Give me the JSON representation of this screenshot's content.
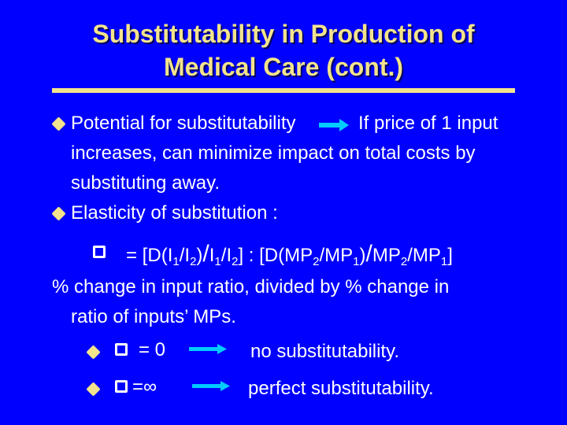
{
  "title": {
    "line1": "Substitutability in Production of",
    "line2": "Medical Care (cont.)"
  },
  "colors": {
    "background": "#0000FF",
    "title": "#F2E38C",
    "bullet": "#F2E38C",
    "text": "#FFFFFF",
    "arrow": "#00CCFF"
  },
  "bullets": [
    {
      "label": "Potential for substitutability",
      "after_arrow": "If price of  1 input",
      "line2": "increases, can minimize impact on total costs by",
      "line3": "substituting away."
    },
    {
      "label": "Elasticity of substitution :"
    }
  ],
  "formula": {
    "eq_open": " = [",
    "delta_symbol": "D",
    "paren_open": "(",
    "I": "I",
    "slash": "/",
    "sub1": "1",
    "sub2": "2",
    "close_paren": ")",
    "big_slash": "/",
    "middle": "] : [",
    "mp_open": "(MP",
    "mp_div": "/MP",
    "mp_close": ")",
    "mp2": "MP",
    "mp_div2": "/MP",
    "end": "]"
  },
  "explanation": {
    "line1": "% change in input ratio, divided by % change in",
    "line2": "ratio of inputs’ MPs."
  },
  "cases": [
    {
      "relation": "= 0",
      "result": "no substitutability."
    },
    {
      "relation": " =∞",
      "result": "perfect substitutability."
    }
  ],
  "icons": {
    "bullet": "diamond-bullet-icon",
    "rho": "square-rho-icon",
    "arrow": "right-arrow-icon",
    "delta": "delta-icon"
  }
}
